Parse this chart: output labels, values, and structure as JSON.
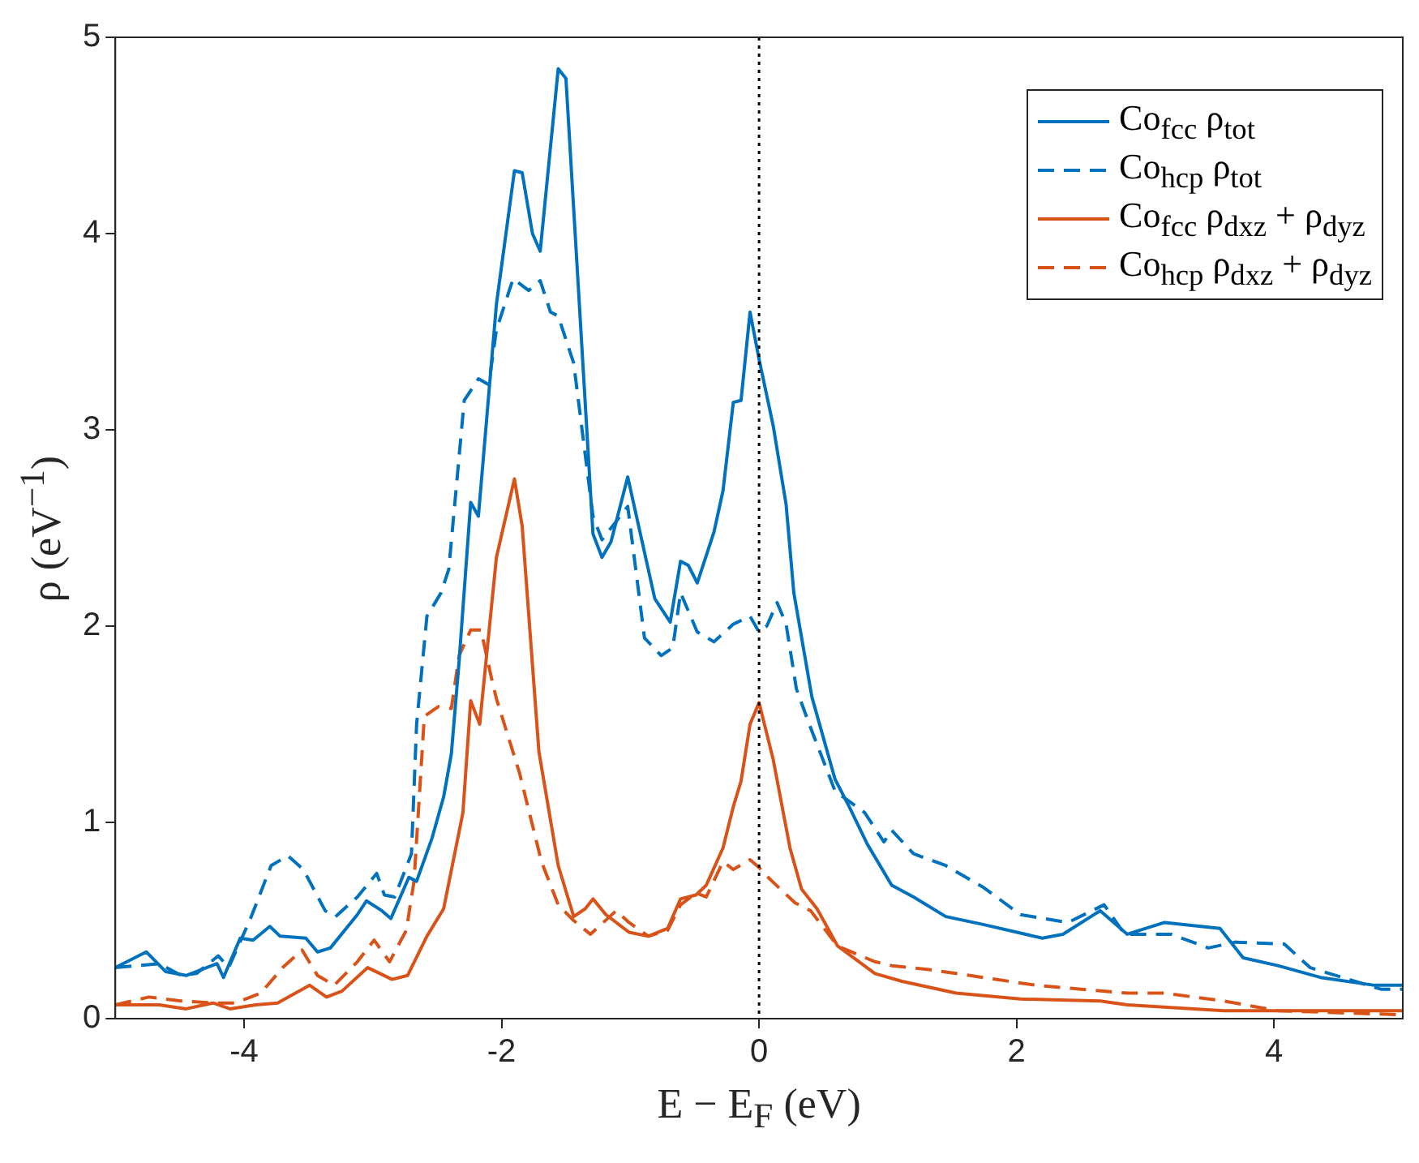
{
  "chart_data": {
    "type": "line",
    "xlabel": "E − E$_{F}$ (eV)",
    "ylabel": "ρ (eV$^{−1}$)",
    "xlim": [
      -5,
      5
    ],
    "xticks": [
      -4,
      -2,
      0,
      2,
      4
    ],
    "ylim": [
      0,
      5
    ],
    "yticks": [
      0,
      1,
      2,
      3,
      4,
      5
    ],
    "grid": false,
    "legend": "top right",
    "marker": "none",
    "ref_lines": [
      {
        "axis": "x",
        "value": 0,
        "color": "#000000",
        "line_style": "dotted"
      }
    ],
    "series": [
      {
        "name": "Co$_{fcc}$ ρ$_{tot}$",
        "color": "#0072bd",
        "line_style": "solid",
        "x": [
          -5,
          -4.76,
          -4.61,
          -4.45,
          -4.21,
          -4.16,
          -4.03,
          -3.93,
          -3.8,
          -3.72,
          -3.52,
          -3.43,
          -3.33,
          -3.12,
          -3.05,
          -2.93,
          -2.86,
          -2.72,
          -2.66,
          -2.54,
          -2.45,
          -2.39,
          -2.33,
          -2.24,
          -2.18,
          -2.04,
          -1.9,
          -1.84,
          -1.76,
          -1.7,
          -1.56,
          -1.5,
          -1.29,
          -1.22,
          -1.15,
          -1.02,
          -0.81,
          -0.69,
          -0.61,
          -0.55,
          -0.48,
          -0.35,
          -0.28,
          -0.2,
          -0.14,
          -0.07,
          0,
          0.11,
          0.21,
          0.27,
          0.41,
          0.59,
          0.7,
          0.84,
          1.03,
          1.2,
          1.45,
          1.74,
          2.2,
          2.36,
          2.65,
          2.86,
          3.15,
          3.58,
          3.76,
          4.03,
          4.36,
          4.78,
          5
        ],
        "values": [
          0.26,
          0.34,
          0.24,
          0.22,
          0.28,
          0.21,
          0.41,
          0.4,
          0.47,
          0.42,
          0.41,
          0.34,
          0.36,
          0.53,
          0.6,
          0.55,
          0.51,
          0.72,
          0.7,
          0.92,
          1.13,
          1.35,
          1.82,
          2.63,
          2.56,
          3.64,
          4.32,
          4.31,
          4,
          3.91,
          4.84,
          4.79,
          2.47,
          2.35,
          2.43,
          2.76,
          2.14,
          2.02,
          2.33,
          2.31,
          2.22,
          2.48,
          2.69,
          3.14,
          3.15,
          3.6,
          3.36,
          3.02,
          2.62,
          2.17,
          1.64,
          1.22,
          1.08,
          0.89,
          0.68,
          0.62,
          0.52,
          0.48,
          0.41,
          0.43,
          0.55,
          0.43,
          0.49,
          0.46,
          0.31,
          0.27,
          0.21,
          0.17,
          0.17
        ]
      },
      {
        "name": "Co$_{hcp}$ ρ$_{tot}$",
        "color": "#0072bd",
        "line_style": "dashed",
        "x": [
          -5,
          -4.66,
          -4.49,
          -4.37,
          -4.2,
          -4.12,
          -3.95,
          -3.79,
          -3.66,
          -3.54,
          -3.37,
          -3.29,
          -3.12,
          -2.97,
          -2.91,
          -2.83,
          -2.7,
          -2.66,
          -2.58,
          -2.47,
          -2.41,
          -2.29,
          -2.18,
          -2.1,
          -2.04,
          -1.91,
          -1.79,
          -1.7,
          -1.62,
          -1.56,
          -1.44,
          -1.29,
          -1.22,
          -1.02,
          -0.89,
          -0.76,
          -0.67,
          -0.61,
          -0.48,
          -0.35,
          -0.2,
          -0.07,
          0,
          0.06,
          0.14,
          0.21,
          0.29,
          0.39,
          0.59,
          0.82,
          0.97,
          1.03,
          1.2,
          1.45,
          1.74,
          2.03,
          2.4,
          2.68,
          2.84,
          3.2,
          3.49,
          3.7,
          4.08,
          4.28,
          4.53,
          4.83,
          5
        ],
        "values": [
          0.26,
          0.28,
          0.22,
          0.23,
          0.32,
          0.26,
          0.51,
          0.78,
          0.83,
          0.76,
          0.55,
          0.52,
          0.62,
          0.74,
          0.63,
          0.62,
          0.84,
          1.5,
          2.05,
          2.17,
          2.29,
          3.15,
          3.26,
          3.23,
          3.51,
          3.77,
          3.71,
          3.76,
          3.6,
          3.58,
          3.34,
          2.56,
          2.44,
          2.61,
          1.94,
          1.85,
          1.89,
          2.17,
          1.97,
          1.92,
          2.01,
          2.05,
          1.97,
          2,
          2.12,
          2.01,
          1.68,
          1.5,
          1.16,
          1.05,
          0.9,
          0.96,
          0.84,
          0.78,
          0.67,
          0.53,
          0.49,
          0.58,
          0.43,
          0.43,
          0.36,
          0.39,
          0.38,
          0.26,
          0.21,
          0.15,
          0.15
        ]
      },
      {
        "name": "Co$_{fcc}$ ρ$_{dxz}$ + ρ$_{dyz}$",
        "color": "#d95319",
        "line_style": "solid",
        "x": [
          -5,
          -4.66,
          -4.45,
          -4.24,
          -4.11,
          -3.91,
          -3.74,
          -3.49,
          -3.36,
          -3.24,
          -3.04,
          -2.85,
          -2.73,
          -2.58,
          -2.45,
          -2.3,
          -2.24,
          -2.17,
          -2.04,
          -1.9,
          -1.84,
          -1.71,
          -1.56,
          -1.44,
          -1.35,
          -1.29,
          -1.19,
          -1.01,
          -0.86,
          -0.71,
          -0.61,
          -0.49,
          -0.41,
          -0.28,
          -0.2,
          -0.14,
          -0.07,
          0,
          0.11,
          0.24,
          0.33,
          0.45,
          0.61,
          0.9,
          1.11,
          1.53,
          2.03,
          2.65,
          2.86,
          3.61,
          5
        ],
        "values": [
          0.07,
          0.07,
          0.05,
          0.08,
          0.05,
          0.07,
          0.08,
          0.17,
          0.11,
          0.14,
          0.26,
          0.2,
          0.22,
          0.42,
          0.56,
          1.05,
          1.62,
          1.5,
          2.35,
          2.75,
          2.51,
          1.36,
          0.78,
          0.52,
          0.56,
          0.61,
          0.53,
          0.44,
          0.42,
          0.46,
          0.61,
          0.63,
          0.68,
          0.87,
          1.08,
          1.21,
          1.5,
          1.61,
          1.32,
          0.87,
          0.66,
          0.56,
          0.37,
          0.23,
          0.19,
          0.13,
          0.1,
          0.09,
          0.07,
          0.04,
          0.04
        ]
      },
      {
        "name": "Co$_{hcp}$ ρ$_{dxz}$ + ρ$_{dyz}$",
        "color": "#d95319",
        "line_style": "dashed",
        "x": [
          -5,
          -4.74,
          -4.49,
          -4.24,
          -4.07,
          -3.87,
          -3.7,
          -3.55,
          -3.43,
          -3.3,
          -3.12,
          -2.99,
          -2.87,
          -2.74,
          -2.68,
          -2.6,
          -2.49,
          -2.39,
          -2.33,
          -2.24,
          -2.16,
          -2.08,
          -2.04,
          -1.86,
          -1.69,
          -1.56,
          -1.44,
          -1.31,
          -1.11,
          -1.01,
          -0.86,
          -0.71,
          -0.61,
          -0.49,
          -0.41,
          -0.28,
          -0.2,
          -0.07,
          0,
          0.07,
          0.15,
          0.28,
          0.4,
          0.61,
          0.9,
          1.03,
          1.32,
          1.74,
          2.15,
          2.86,
          3.15,
          3.61,
          4.03,
          5
        ],
        "values": [
          0.07,
          0.11,
          0.09,
          0.08,
          0.08,
          0.13,
          0.26,
          0.35,
          0.22,
          0.17,
          0.29,
          0.4,
          0.29,
          0.45,
          0.7,
          1.54,
          1.59,
          1.58,
          1.85,
          1.98,
          1.98,
          1.74,
          1.63,
          1.25,
          0.8,
          0.58,
          0.5,
          0.43,
          0.55,
          0.49,
          0.42,
          0.45,
          0.58,
          0.64,
          0.62,
          0.8,
          0.76,
          0.81,
          0.77,
          0.72,
          0.67,
          0.59,
          0.55,
          0.37,
          0.29,
          0.27,
          0.25,
          0.21,
          0.17,
          0.13,
          0.13,
          0.09,
          0.04,
          0.02
        ]
      }
    ]
  }
}
